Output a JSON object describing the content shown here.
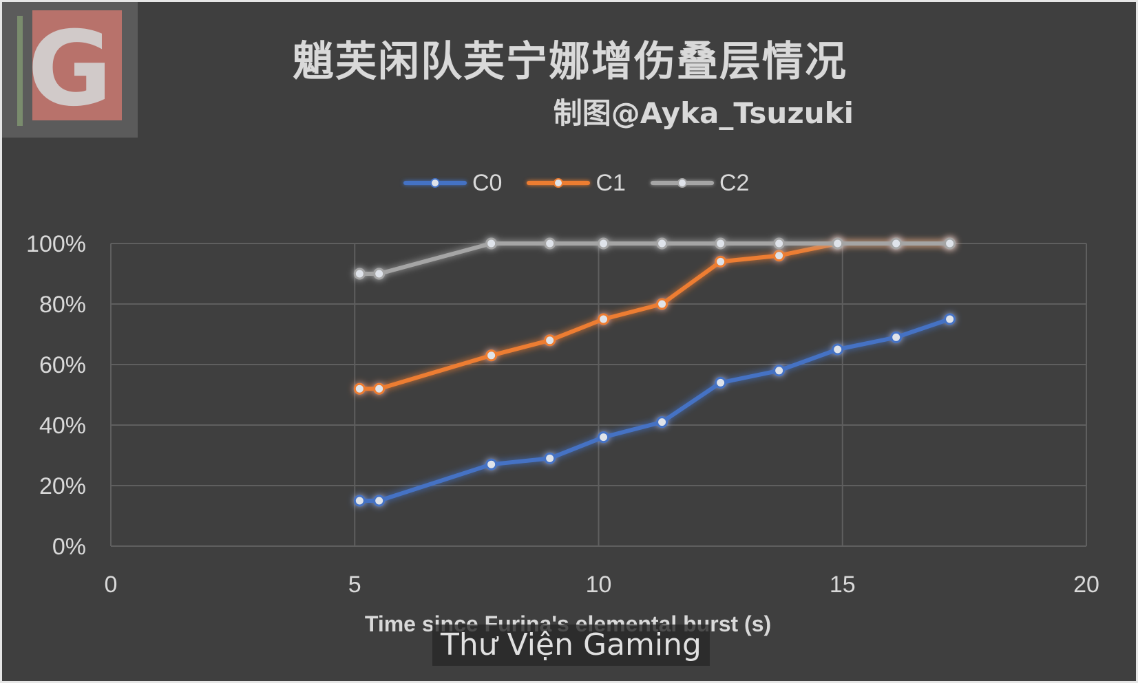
{
  "logo": {
    "letter": "G"
  },
  "watermark": "Thư Viện Gaming",
  "chart_data": {
    "type": "line",
    "title": "魈芙闲队芙宁娜增伤叠层情况",
    "subtitle": "制图@Ayka_Tsuzuki",
    "xlabel": "Time since Furina's elemental burst (s)",
    "ylabel": "",
    "xlim": [
      0,
      20
    ],
    "ylim": [
      0,
      1
    ],
    "x_ticks": [
      0,
      5,
      10,
      15,
      20
    ],
    "x_tick_labels": [
      "0",
      "5",
      "10",
      "15",
      "20"
    ],
    "y_ticks": [
      0,
      0.2,
      0.4,
      0.6,
      0.8,
      1.0
    ],
    "y_tick_labels": [
      "0%",
      "20%",
      "40%",
      "60%",
      "80%",
      "100%"
    ],
    "grid": true,
    "legend_position": "top",
    "series": [
      {
        "name": "C0",
        "color": "#4472c4",
        "points": [
          [
            5.1,
            0.15
          ],
          [
            5.5,
            0.15
          ],
          [
            7.8,
            0.27
          ],
          [
            9.0,
            0.29
          ],
          [
            10.1,
            0.36
          ],
          [
            11.3,
            0.41
          ],
          [
            12.5,
            0.54
          ],
          [
            13.7,
            0.58
          ],
          [
            14.9,
            0.65
          ],
          [
            16.1,
            0.69
          ],
          [
            17.2,
            0.75
          ]
        ]
      },
      {
        "name": "C1",
        "color": "#ed7d31",
        "points": [
          [
            5.1,
            0.52
          ],
          [
            5.5,
            0.52
          ],
          [
            7.8,
            0.63
          ],
          [
            9.0,
            0.68
          ],
          [
            10.1,
            0.75
          ],
          [
            11.3,
            0.8
          ],
          [
            12.5,
            0.94
          ],
          [
            13.7,
            0.96
          ],
          [
            14.9,
            1.0
          ],
          [
            16.1,
            1.0
          ],
          [
            17.2,
            1.0
          ]
        ]
      },
      {
        "name": "C2",
        "color": "#a5a5a5",
        "points": [
          [
            5.1,
            0.9
          ],
          [
            5.5,
            0.9
          ],
          [
            7.8,
            1.0
          ],
          [
            9.0,
            1.0
          ],
          [
            10.1,
            1.0
          ],
          [
            11.3,
            1.0
          ],
          [
            12.5,
            1.0
          ],
          [
            13.7,
            1.0
          ],
          [
            14.9,
            1.0
          ],
          [
            16.1,
            1.0
          ],
          [
            17.2,
            1.0
          ]
        ]
      }
    ]
  }
}
